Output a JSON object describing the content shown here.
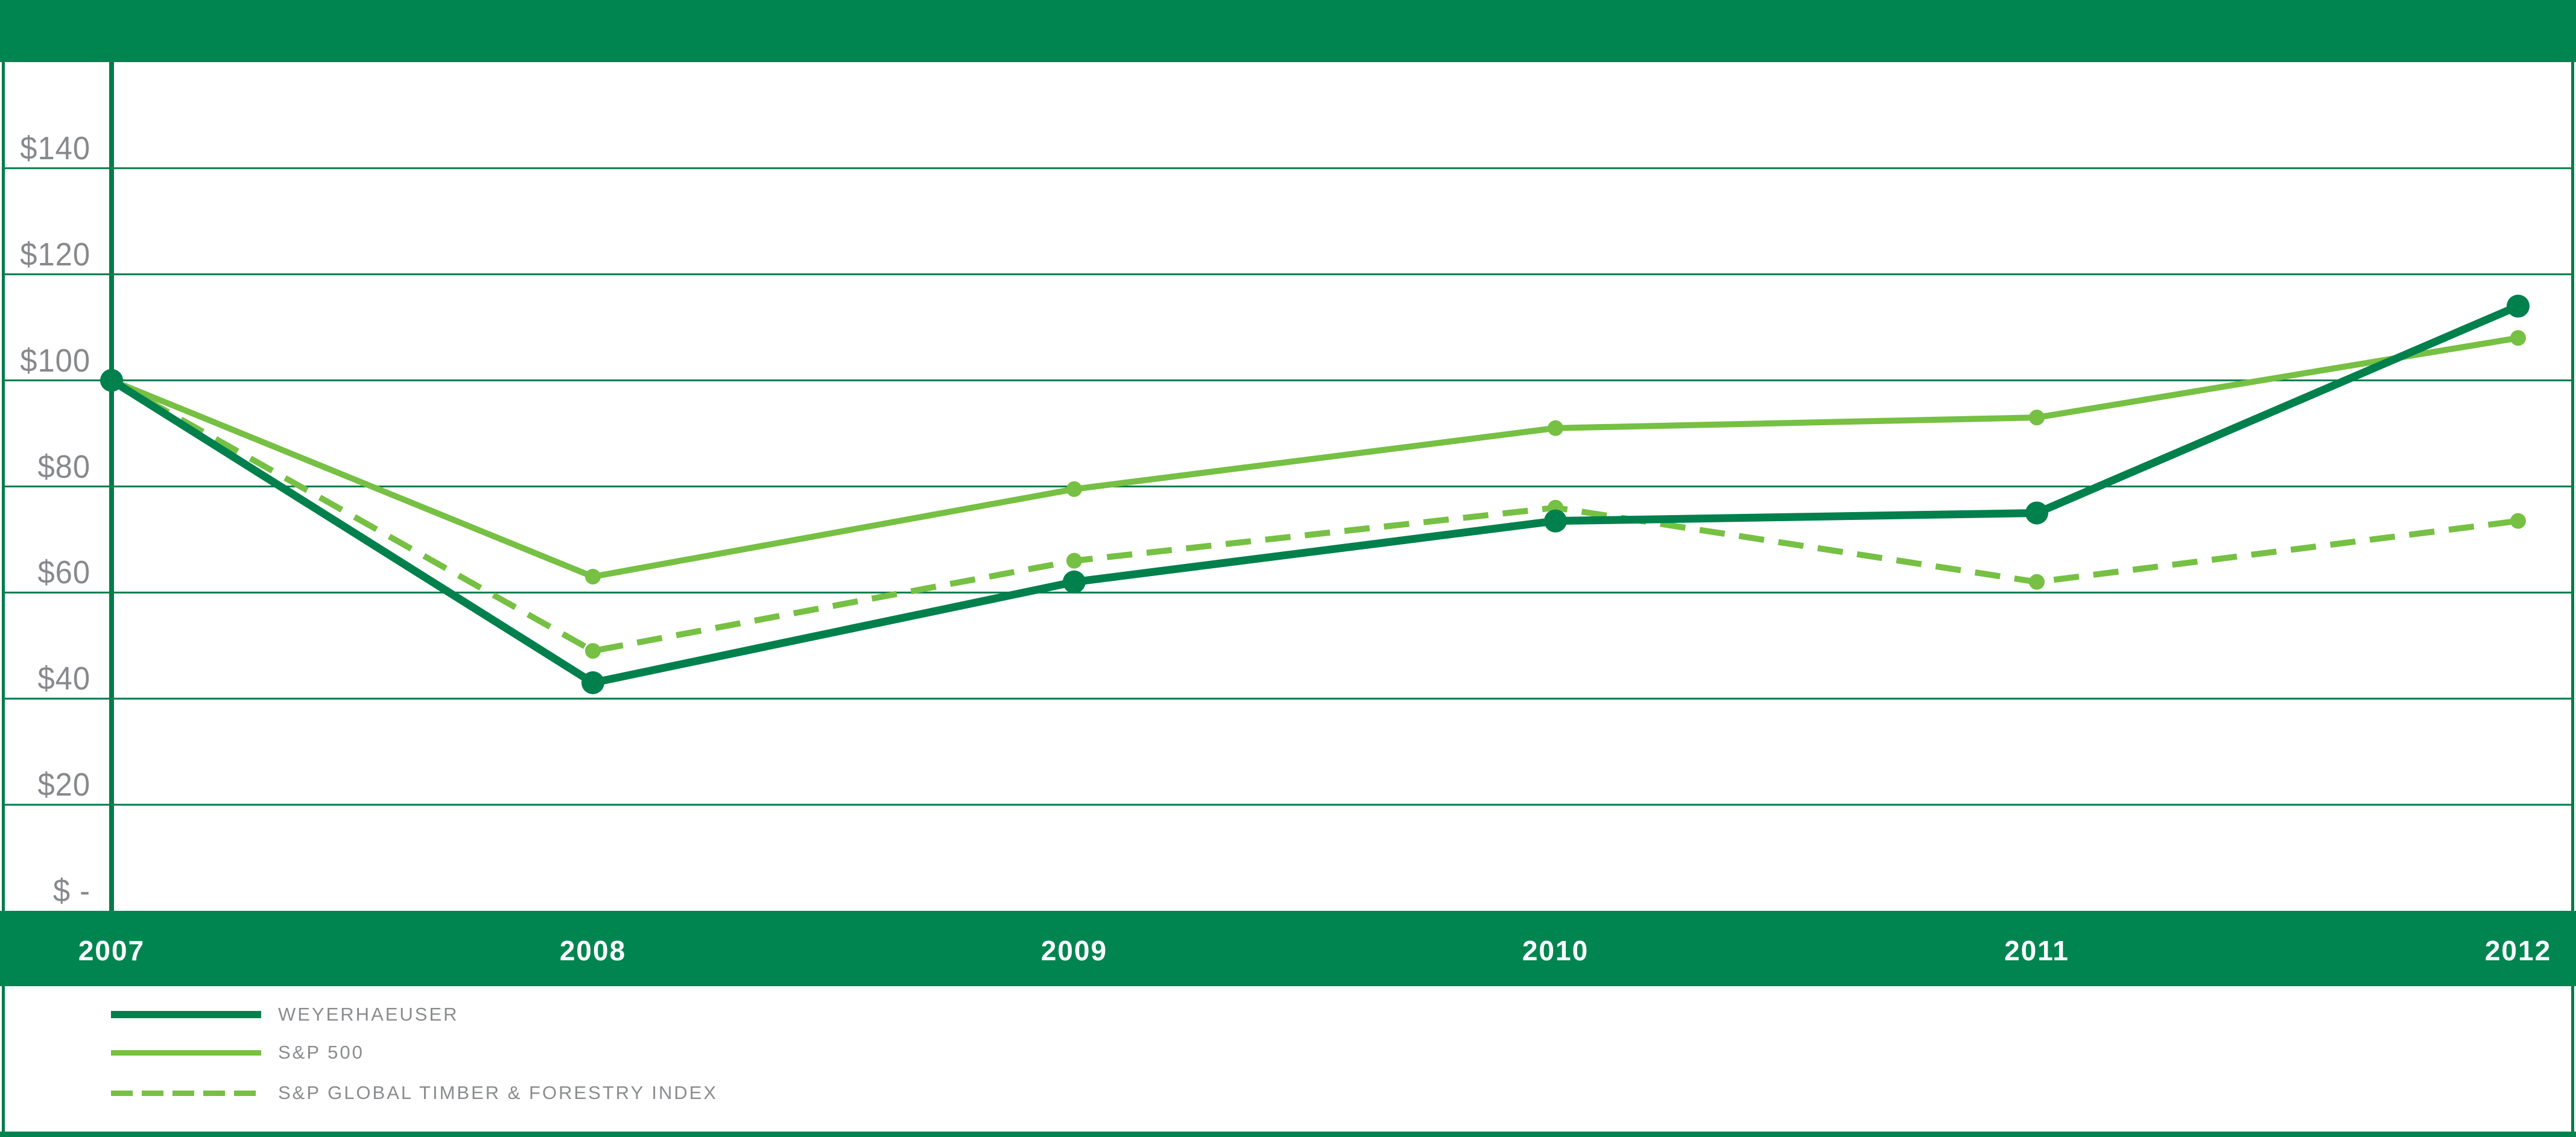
{
  "page": {
    "background_color": "#ffffff",
    "header_bar": {
      "color": "#008551"
    },
    "footer_strip": {
      "color": "#008551"
    }
  },
  "colors": {
    "brand_green": "#008551",
    "dark_green_line": "#00804c",
    "light_green": "#76c043",
    "grid_green": "#007c4b",
    "axis_text_gray": "#87898c",
    "legend_text_gray": "#8a8c8e",
    "year_text_white": "#ffffff"
  },
  "chart_data": {
    "type": "line",
    "title": "",
    "x": [
      "2007",
      "2008",
      "2009",
      "2010",
      "2011",
      "2012"
    ],
    "series": [
      {
        "name": "WEYERHAEUSER",
        "values": [
          100,
          43,
          62,
          73.5,
          75,
          114
        ],
        "color": "#00804c",
        "line_style": "solid",
        "line_width": 13,
        "marker_radius": 19,
        "legend_swatch_thickness": 12
      },
      {
        "name": "S&P 500",
        "values": [
          100,
          63,
          79.5,
          91,
          93,
          108
        ],
        "color": "#76c043",
        "line_style": "solid",
        "line_width": 10,
        "marker_radius": 13,
        "legend_swatch_thickness": 9
      },
      {
        "name": "S&P GLOBAL TIMBER & FORESTRY INDEX",
        "values": [
          100,
          49,
          66,
          76,
          62,
          73.5
        ],
        "color": "#76c043",
        "line_style": "dashed",
        "dash_pattern": [
          42,
          24
        ],
        "line_width": 10,
        "marker_radius": 13,
        "legend_swatch_thickness": 9
      }
    ],
    "draw_order": [
      1,
      2,
      0
    ],
    "ylim": [
      0,
      160
    ],
    "yticks": [
      {
        "value": 140,
        "label": "$140",
        "line": true
      },
      {
        "value": 120,
        "label": "$120",
        "line": true
      },
      {
        "value": 100,
        "label": "$100",
        "line": true
      },
      {
        "value": 80,
        "label": "$80",
        "line": true
      },
      {
        "value": 60,
        "label": "$60",
        "line": true
      },
      {
        "value": 40,
        "label": "$40",
        "line": true
      },
      {
        "value": 20,
        "label": "$20",
        "line": true
      },
      {
        "value": 0,
        "label": "$ -",
        "line": false
      }
    ],
    "grid": true,
    "legend_position": "bottom-left",
    "y_axis_line_x_category_index": 0
  }
}
